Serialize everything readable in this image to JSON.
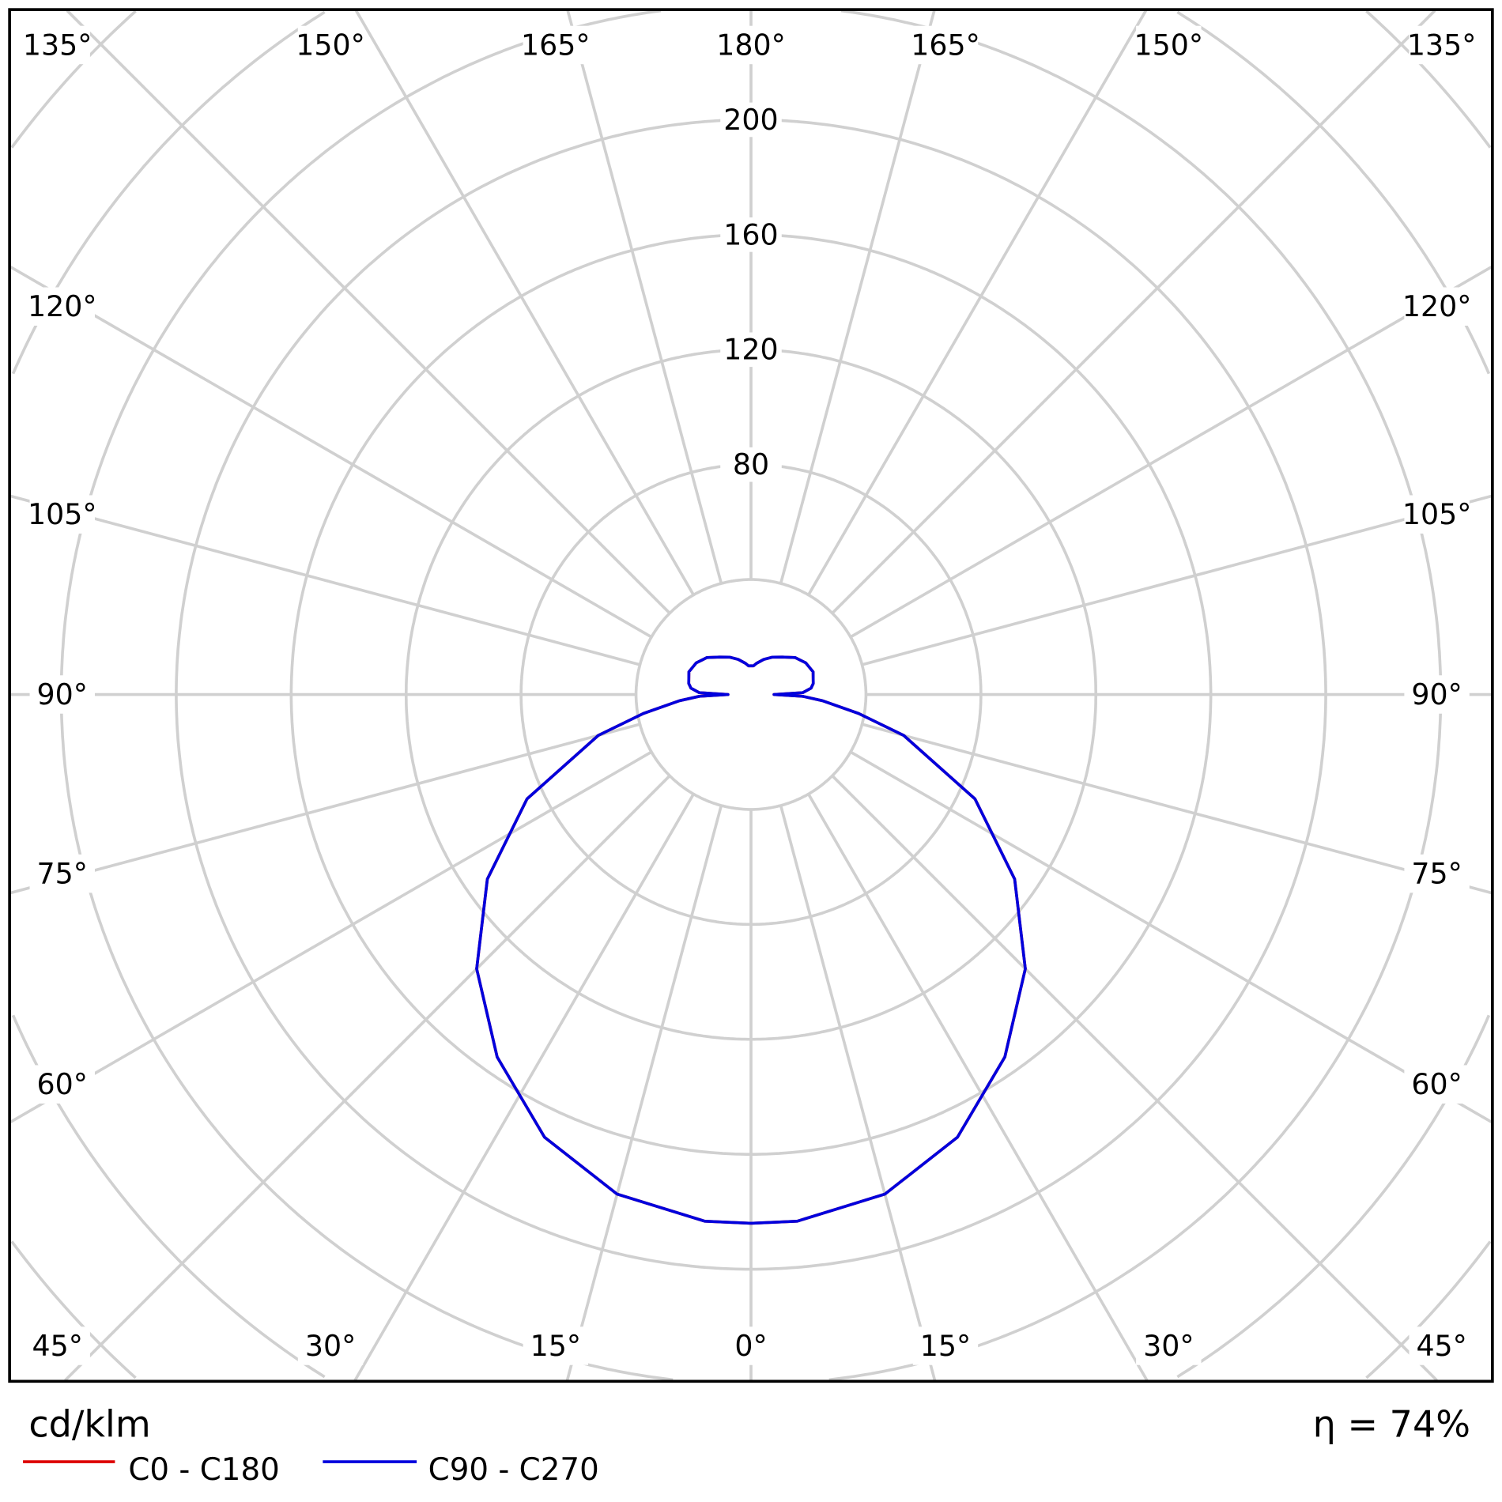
{
  "chart_data": {
    "type": "polar",
    "unit": "cd/klm",
    "efficiency": "η = 74%",
    "radial_ticks": [
      80,
      120,
      160,
      200
    ],
    "radial_tick_labels": [
      "80",
      "120",
      "160",
      "200"
    ],
    "radial_step": 40,
    "angle_labels": {
      "top": [
        "135°",
        "150°",
        "165°",
        "180°",
        "165°",
        "150°",
        "135°"
      ],
      "left": [
        "120°",
        "105°",
        "90°",
        "75°",
        "60°"
      ],
      "right": [
        "120°",
        "105°",
        "90°",
        "75°",
        "60°"
      ],
      "bottom": [
        "45°",
        "30°",
        "15°",
        "0°",
        "15°",
        "30°",
        "45°"
      ]
    },
    "grid": true,
    "legend": "bottom-left",
    "angles": [
      0,
      5,
      15,
      25,
      35,
      45,
      55,
      65,
      75,
      80,
      85,
      88,
      90,
      92,
      96,
      100,
      110,
      120,
      130,
      140,
      150,
      160,
      170,
      175,
      180
    ],
    "series": [
      {
        "name": "C0 - C180",
        "color": "#dd0000",
        "values": [
          184,
          184,
          180,
          170,
          154,
          135,
          112,
          86,
          55,
          38,
          25,
          18,
          8,
          18,
          21,
          22,
          23,
          22,
          20,
          17,
          15,
          13,
          11,
          10,
          10
        ]
      },
      {
        "name": "C90 - C270",
        "color": "#0000dd",
        "values": [
          184,
          184,
          180,
          170,
          154,
          135,
          112,
          86,
          55,
          38,
          25,
          18,
          8,
          18,
          21,
          22,
          23,
          22,
          20,
          17,
          15,
          13,
          11,
          10,
          10
        ]
      }
    ]
  }
}
